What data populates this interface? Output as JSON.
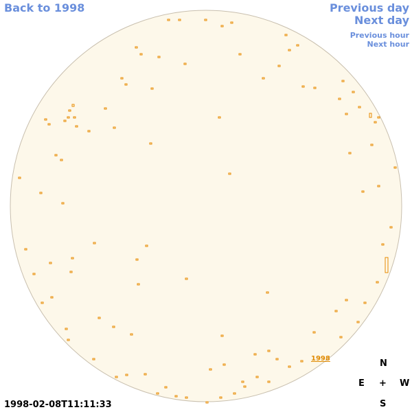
{
  "links": {
    "back": "Back to 1998",
    "previous_day": "Previous day",
    "next_day": "Next day",
    "previous_hour": "Previous hour",
    "next_hour": "Next hour"
  },
  "timestamp": "1998-02-08T11:11:33",
  "year_marker": "1998",
  "compass": {
    "north": "N",
    "east": "E",
    "center": "+",
    "west": "W",
    "south": "S"
  }
}
